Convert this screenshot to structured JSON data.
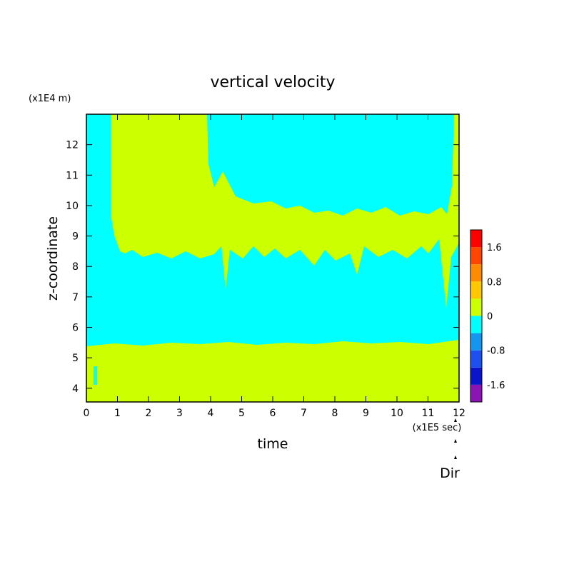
{
  "chart_data": {
    "type": "heatmap",
    "title": "vertical velocity",
    "xlabel": "time",
    "ylabel": "z-coordinate",
    "x_scale_label": "(x1E5 sec)",
    "y_scale_label": "(x1E4 m)",
    "xlim": [
      0,
      12
    ],
    "ylim": [
      3.55,
      13.0
    ],
    "x_ticks": [
      "0",
      "1",
      "2",
      "3",
      "4",
      "5",
      "6",
      "7",
      "8",
      "9",
      "10",
      "11",
      "12"
    ],
    "y_ticks": [
      "4",
      "5",
      "6",
      "7",
      "8",
      "9",
      "10",
      "11",
      "12"
    ],
    "colorbar": {
      "levels": [
        -2.0,
        -1.6,
        -1.2,
        -0.8,
        -0.4,
        0,
        0.4,
        0.8,
        1.2,
        1.6,
        2.0
      ],
      "colors": [
        "#8a14b4",
        "#0a14c8",
        "#1e50f0",
        "#1496f0",
        "#00ffff",
        "#ccff00",
        "#ffc800",
        "#ff8c00",
        "#ff4600",
        "#ff0000",
        "#ffb4b4"
      ],
      "tick_labels": [
        "1.6",
        "0.8",
        "0",
        "-0.8",
        "-1.6"
      ]
    },
    "regions": [
      {
        "name": "lower positive layer",
        "value_sign": "positive",
        "z_range": [
          3.55,
          5.4
        ],
        "t_range": [
          0,
          12
        ]
      },
      {
        "name": "mid negative layer",
        "value_sign": "negative",
        "z_range": [
          5.4,
          8.5
        ],
        "t_range": [
          0,
          12
        ]
      },
      {
        "name": "upper positive region",
        "value_sign": "positive",
        "z_range": [
          8.5,
          13.0
        ],
        "t_range": [
          0.8,
          12
        ]
      },
      {
        "name": "upper negative region",
        "value_sign": "negative",
        "z_range": [
          9.5,
          13.0
        ],
        "t_range": [
          4.0,
          11.5
        ]
      }
    ],
    "colors": {
      "positive": "#ccff00",
      "negative": "#00ffff"
    },
    "annotation": "Dir"
  }
}
